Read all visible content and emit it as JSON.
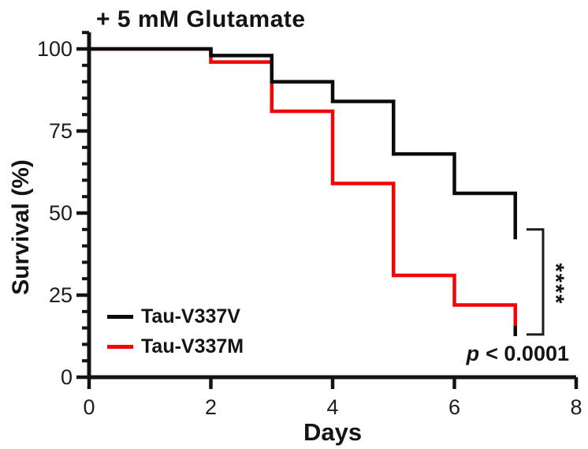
{
  "figure": {
    "title": "+ 5 mM Glutamate",
    "p_label": "p",
    "p_value": "< 0.0001",
    "significance": "****"
  },
  "chart_data": {
    "type": "line",
    "variant": "kaplan-meier-step",
    "title": "+ 5 mM Glutamate",
    "xlabel": "Days",
    "ylabel": "Survival (%)",
    "xlim": [
      0,
      8
    ],
    "ylim": [
      0,
      105
    ],
    "x_ticks": [
      0,
      2,
      4,
      6,
      8
    ],
    "y_ticks": [
      0,
      25,
      50,
      75,
      100
    ],
    "y_minor_tick_step": 5,
    "grid": false,
    "legend_position": "lower-left",
    "series": [
      {
        "name": "Tau-V337V",
        "color": "#0b0b0b",
        "points": [
          [
            0,
            100
          ],
          [
            2,
            98
          ],
          [
            3,
            90
          ],
          [
            4,
            84
          ],
          [
            5,
            68
          ],
          [
            6,
            56
          ],
          [
            7,
            42
          ]
        ]
      },
      {
        "name": "Tau-V337M",
        "color": "#f40505",
        "points": [
          [
            0,
            100
          ],
          [
            2,
            96
          ],
          [
            3,
            81
          ],
          [
            4,
            59
          ],
          [
            5,
            31
          ],
          [
            6,
            22
          ],
          [
            7,
            13
          ]
        ]
      }
    ],
    "annotations": {
      "p_text": "p < 0.0001",
      "significance_stars": "****",
      "bracket_span_pct": [
        45,
        13
      ],
      "bracket_day": 7.4
    }
  }
}
